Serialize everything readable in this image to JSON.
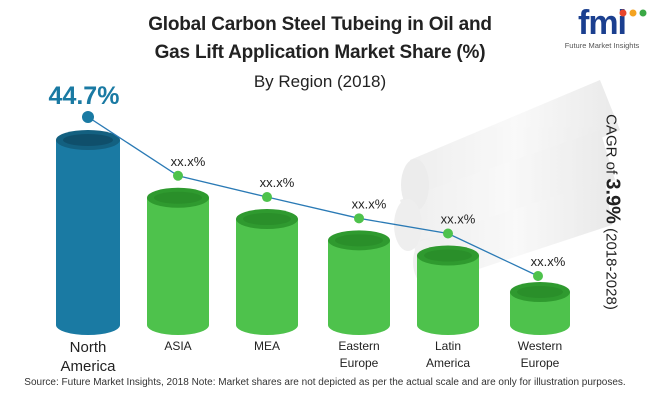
{
  "title_line1": "Global Carbon Steel Tubeing in Oil and",
  "title_line2": "Gas Lift Application Market Share (%)",
  "subtitle": "By Region (2018)",
  "logo": {
    "text": "fmi",
    "tagline": "Future Market Insights"
  },
  "cagr": {
    "prefix": "CAGR of",
    "value": "3.9%",
    "period": "(2018-2028)"
  },
  "source": "Source: Future Market Insights, 2018   Note: Market shares are not depicted as per the actual scale and are only for illustration purposes.",
  "colors": {
    "highlight": "#1a7aa3",
    "highlight_dark": "#136080",
    "green": "#4ec24c",
    "green_dark": "#2f9a2f",
    "line": "#2a7ab5"
  },
  "chart_data": {
    "type": "bar",
    "categories": [
      "North America",
      "ASIA",
      "MEA",
      "Eastern Europe",
      "Latin America",
      "Western Europe"
    ],
    "category_lines": [
      [
        "North",
        "America"
      ],
      [
        "ASIA"
      ],
      [
        "MEA"
      ],
      [
        "Eastern",
        "Europe"
      ],
      [
        "Latin",
        "America"
      ],
      [
        "Western",
        "Europe"
      ]
    ],
    "values": [
      44.7,
      null,
      null,
      null,
      null,
      null
    ],
    "value_labels": [
      "44.7%",
      "xx.x%",
      "xx.x%",
      "xx.x%",
      "xx.x%",
      "xx.x%"
    ],
    "illustrative_levels": [
      1.0,
      0.62,
      0.48,
      0.34,
      0.24,
      0.0
    ],
    "title": "",
    "xlabel": "",
    "ylabel": ""
  }
}
